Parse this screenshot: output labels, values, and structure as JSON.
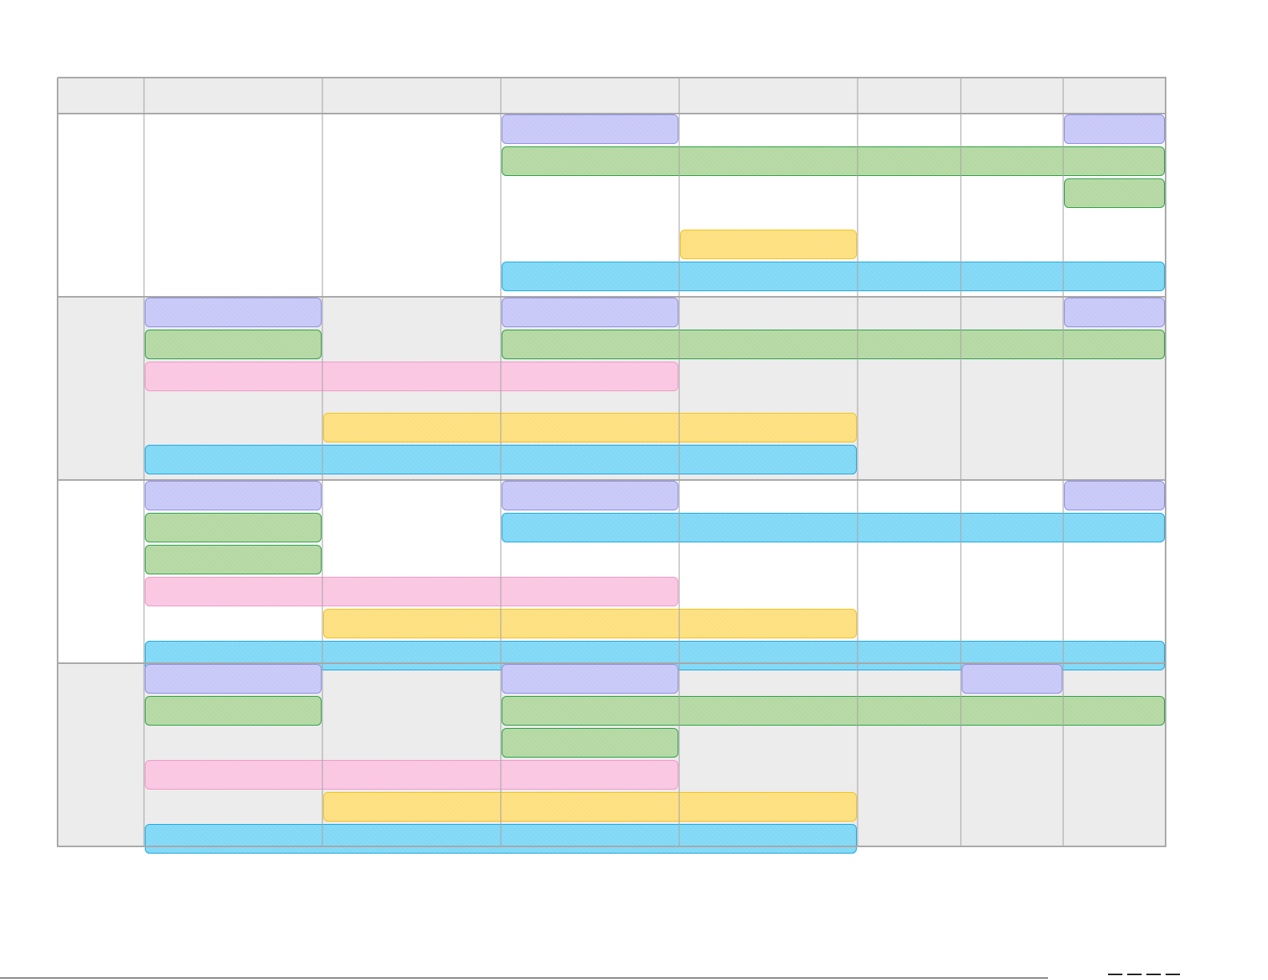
{
  "diagram": {
    "type": "schedule-grid",
    "columns": [
      "",
      "",
      "",
      "",
      "",
      "",
      "",
      ""
    ],
    "rows": [
      "",
      "",
      "",
      ""
    ],
    "colors": {
      "grid_line": "#a8a8a8",
      "header_fill": "#ececec",
      "band_fill": "#ececec",
      "purple": {
        "fill": "#c8c8f8",
        "stroke": "#8f8fe6"
      },
      "green": {
        "fill": "#b4d8a2",
        "stroke": "#2aa148"
      },
      "pink": {
        "fill": "#fac6e2",
        "stroke": "#f09ac6"
      },
      "yellow": {
        "fill": "#fddf7e",
        "stroke": "#f5c21c"
      },
      "blue": {
        "fill": "#7fd8f6",
        "stroke": "#1ea7e1"
      }
    },
    "bars": [
      {
        "row": 0,
        "start": 3,
        "end": 4,
        "slot": 0,
        "color": "purple"
      },
      {
        "row": 0,
        "start": 7,
        "end": 8,
        "slot": 0,
        "color": "purple"
      },
      {
        "row": 0,
        "start": 3,
        "end": 8,
        "slot": 1,
        "color": "green"
      },
      {
        "row": 0,
        "start": 7,
        "end": 8,
        "slot": 2,
        "color": "green"
      },
      {
        "row": 0,
        "start": 4,
        "end": 5,
        "slot": 3.6,
        "color": "yellow"
      },
      {
        "row": 0,
        "start": 3,
        "end": 8,
        "slot": 4.6,
        "color": "blue"
      },
      {
        "row": 1,
        "start": 1,
        "end": 2,
        "slot": 0,
        "color": "purple"
      },
      {
        "row": 1,
        "start": 3,
        "end": 4,
        "slot": 0,
        "color": "purple"
      },
      {
        "row": 1,
        "start": 7,
        "end": 8,
        "slot": 0,
        "color": "purple"
      },
      {
        "row": 1,
        "start": 1,
        "end": 2,
        "slot": 1,
        "color": "green"
      },
      {
        "row": 1,
        "start": 3,
        "end": 8,
        "slot": 1,
        "color": "green"
      },
      {
        "row": 1,
        "start": 1,
        "end": 4,
        "slot": 2,
        "color": "pink"
      },
      {
        "row": 1,
        "start": 2,
        "end": 5,
        "slot": 3.6,
        "color": "yellow"
      },
      {
        "row": 1,
        "start": 1,
        "end": 5,
        "slot": 4.6,
        "color": "blue"
      },
      {
        "row": 2,
        "start": 1,
        "end": 2,
        "slot": 0,
        "color": "purple"
      },
      {
        "row": 2,
        "start": 3,
        "end": 4,
        "slot": 0,
        "color": "purple"
      },
      {
        "row": 2,
        "start": 7,
        "end": 8,
        "slot": 0,
        "color": "purple"
      },
      {
        "row": 2,
        "start": 1,
        "end": 2,
        "slot": 1,
        "color": "green"
      },
      {
        "row": 2,
        "start": 3,
        "end": 8,
        "slot": 1,
        "color": "blue"
      },
      {
        "row": 2,
        "start": 1,
        "end": 2,
        "slot": 2,
        "color": "green"
      },
      {
        "row": 2,
        "start": 1,
        "end": 4,
        "slot": 3,
        "color": "pink"
      },
      {
        "row": 2,
        "start": 2,
        "end": 5,
        "slot": 4,
        "color": "yellow"
      },
      {
        "row": 2,
        "start": 1,
        "end": 8,
        "slot": 5,
        "color": "blue"
      },
      {
        "row": 3,
        "start": 1,
        "end": 2,
        "slot": 0,
        "color": "purple"
      },
      {
        "row": 3,
        "start": 3,
        "end": 4,
        "slot": 0,
        "color": "purple"
      },
      {
        "row": 3,
        "start": 6,
        "end": 7,
        "slot": 0,
        "color": "purple"
      },
      {
        "row": 3,
        "start": 1,
        "end": 2,
        "slot": 1,
        "color": "green"
      },
      {
        "row": 3,
        "start": 3,
        "end": 8,
        "slot": 1,
        "color": "green"
      },
      {
        "row": 3,
        "start": 3,
        "end": 4,
        "slot": 2,
        "color": "green"
      },
      {
        "row": 3,
        "start": 1,
        "end": 4,
        "slot": 3,
        "color": "pink"
      },
      {
        "row": 3,
        "start": 2,
        "end": 5,
        "slot": 4,
        "color": "yellow"
      },
      {
        "row": 3,
        "start": 1,
        "end": 5,
        "slot": 5,
        "color": "blue"
      }
    ]
  }
}
